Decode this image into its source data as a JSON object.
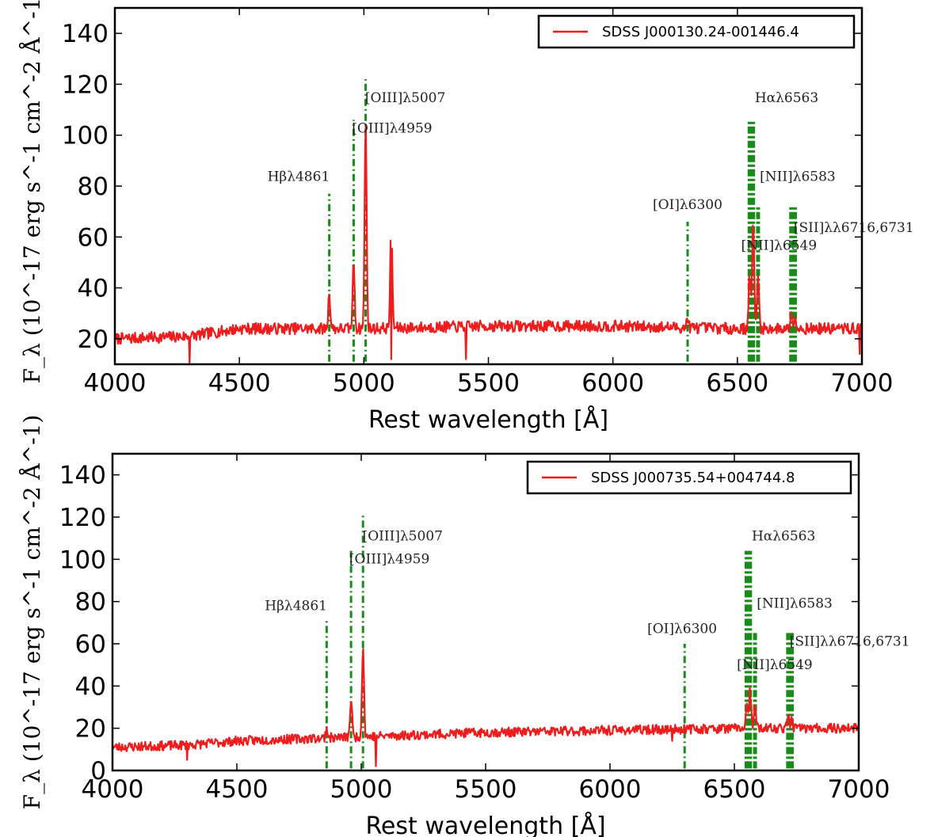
{
  "chart_data": [
    {
      "type": "line",
      "legend": "SDSS J000130.24-001446.4",
      "legend_position": "top-right",
      "xlabel": "Rest wavelength [Å]",
      "ylabel": "F_λ (10^-17 erg s^-1 cm^-2 Å^-1)",
      "xlim": [
        4000,
        7000
      ],
      "ylim": [
        10,
        150
      ],
      "xticks": [
        4000,
        4500,
        5000,
        5500,
        6000,
        6500,
        7000
      ],
      "yticks": [
        20,
        40,
        60,
        80,
        100,
        120,
        140
      ],
      "grid": false,
      "colors": {
        "spectrum": "#ee1c1c",
        "lines": "#1a8a1a"
      },
      "continuum": [
        [
          4000,
          20
        ],
        [
          4300,
          21
        ],
        [
          4500,
          24
        ],
        [
          5000,
          24
        ],
        [
          5500,
          25
        ],
        [
          6000,
          25
        ],
        [
          6500,
          24
        ],
        [
          7000,
          24
        ]
      ],
      "emission_peaks": [
        [
          4861,
          38
        ],
        [
          4959,
          50
        ],
        [
          5007,
          106
        ],
        [
          5110,
          67
        ],
        [
          6300,
          28
        ],
        [
          6549,
          45
        ],
        [
          6563,
          66
        ],
        [
          6583,
          45
        ],
        [
          6716,
          30
        ],
        [
          6731,
          30
        ]
      ],
      "absorption_dips": [
        [
          4300,
          10
        ],
        [
          5110,
          12
        ],
        [
          5410,
          12
        ],
        [
          6990,
          14
        ]
      ],
      "lines": [
        {
          "wavelength": 4861,
          "top": 77,
          "label": "Hβλ4861",
          "style": "dashdot"
        },
        {
          "wavelength": 4959,
          "top": 106,
          "label": "[OIII]λ4959",
          "style": "dashdot"
        },
        {
          "wavelength": 5007,
          "top": 122,
          "label": "[OIII]λ5007",
          "style": "dashdot"
        },
        {
          "wavelength": 6300,
          "top": 66,
          "label": "[OI]λ6300",
          "style": "dashdot"
        },
        {
          "wavelength": 6549,
          "top": 106,
          "label": "[NII]λ6549",
          "style": "thick"
        },
        {
          "wavelength": 6563,
          "top": 106,
          "label": "Hαλ6563",
          "style": "thick"
        },
        {
          "wavelength": 6583,
          "top": 72,
          "label": "[NII]λ6583",
          "style": "thick"
        },
        {
          "wavelength": 6716,
          "top": 72,
          "label": "[SII]λλ6716,6731",
          "style": "thick"
        },
        {
          "wavelength": 6731,
          "top": 72,
          "label": "",
          "style": "thick"
        }
      ],
      "line_labels": [
        {
          "text": "Hβλ4861",
          "x": 4863,
          "y": 82,
          "anchor": "end"
        },
        {
          "text": "[OIII]λ4959",
          "x": 4952,
          "y": 101,
          "anchor": "start"
        },
        {
          "text": "[OIII]λ5007",
          "x": 5005,
          "y": 113,
          "anchor": "start"
        },
        {
          "text": "[OI]λ6300",
          "x": 6300,
          "y": 71,
          "anchor": "middle"
        },
        {
          "text": "Hαλ6563",
          "x": 6570,
          "y": 113,
          "anchor": "start"
        },
        {
          "text": "[NII]λ6583",
          "x": 6590,
          "y": 82,
          "anchor": "start"
        },
        {
          "text": "[SII]λλ6716,6731",
          "x": 6726,
          "y": 62,
          "anchor": "start"
        },
        {
          "text": "[NII]λ6549",
          "x": 6515,
          "y": 55,
          "anchor": "start"
        }
      ]
    },
    {
      "type": "line",
      "legend": "SDSS J000735.54+004744.8",
      "legend_position": "top-right",
      "xlabel": "Rest wavelength [Å]",
      "ylabel": "F_λ (10^-17 erg s^-1 cm^-2 Å^-1)",
      "xlim": [
        4000,
        7000
      ],
      "ylim": [
        0,
        150
      ],
      "xticks": [
        4000,
        4500,
        5000,
        5500,
        6000,
        6500,
        7000
      ],
      "yticks": [
        0,
        20,
        40,
        60,
        80,
        100,
        120,
        140
      ],
      "grid": false,
      "colors": {
        "spectrum": "#ee1c1c",
        "lines": "#1a8a1a"
      },
      "continuum": [
        [
          4000,
          11
        ],
        [
          4300,
          12
        ],
        [
          4500,
          14
        ],
        [
          5000,
          16
        ],
        [
          5500,
          18
        ],
        [
          6000,
          19
        ],
        [
          6500,
          20
        ],
        [
          7000,
          20
        ]
      ],
      "emission_peaks": [
        [
          4861,
          20
        ],
        [
          4959,
          34
        ],
        [
          5007,
          59
        ],
        [
          6300,
          20
        ],
        [
          6549,
          30
        ],
        [
          6563,
          38
        ],
        [
          6583,
          30
        ],
        [
          6716,
          25
        ],
        [
          6731,
          25
        ]
      ],
      "absorption_dips": [
        [
          4300,
          5
        ],
        [
          5060,
          2
        ],
        [
          6250,
          14
        ]
      ],
      "lines": [
        {
          "wavelength": 4861,
          "top": 71,
          "label": "Hβλ4861",
          "style": "dashdot"
        },
        {
          "wavelength": 4959,
          "top": 104,
          "label": "[OIII]λ4959",
          "style": "dashdot"
        },
        {
          "wavelength": 5007,
          "top": 121,
          "label": "[OIII]λ5007",
          "style": "dashdot"
        },
        {
          "wavelength": 6300,
          "top": 60,
          "label": "[OI]λ6300",
          "style": "dashdot"
        },
        {
          "wavelength": 6549,
          "top": 104,
          "label": "[NII]λ6549",
          "style": "thick"
        },
        {
          "wavelength": 6563,
          "top": 104,
          "label": "Hαλ6563",
          "style": "thick"
        },
        {
          "wavelength": 6583,
          "top": 66,
          "label": "[NII]λ6583",
          "style": "thick"
        },
        {
          "wavelength": 6716,
          "top": 66,
          "label": "[SII]λλ6716,6731",
          "style": "thick"
        },
        {
          "wavelength": 6731,
          "top": 66,
          "label": "",
          "style": "thick"
        }
      ],
      "line_labels": [
        {
          "text": "Hβλ4861",
          "x": 4863,
          "y": 76,
          "anchor": "end"
        },
        {
          "text": "[OIII]λ4959",
          "x": 4952,
          "y": 98,
          "anchor": "start"
        },
        {
          "text": "[OIII]λ5007",
          "x": 5005,
          "y": 109,
          "anchor": "start"
        },
        {
          "text": "[OI]λ6300",
          "x": 6290,
          "y": 65,
          "anchor": "middle"
        },
        {
          "text": "Hαλ6563",
          "x": 6570,
          "y": 109,
          "anchor": "start"
        },
        {
          "text": "[NII]λ6583",
          "x": 6590,
          "y": 77,
          "anchor": "start"
        },
        {
          "text": "[SII]λλ6716,6731",
          "x": 6722,
          "y": 59,
          "anchor": "start"
        },
        {
          "text": "[NII]λ6549",
          "x": 6510,
          "y": 48,
          "anchor": "start"
        }
      ]
    }
  ]
}
